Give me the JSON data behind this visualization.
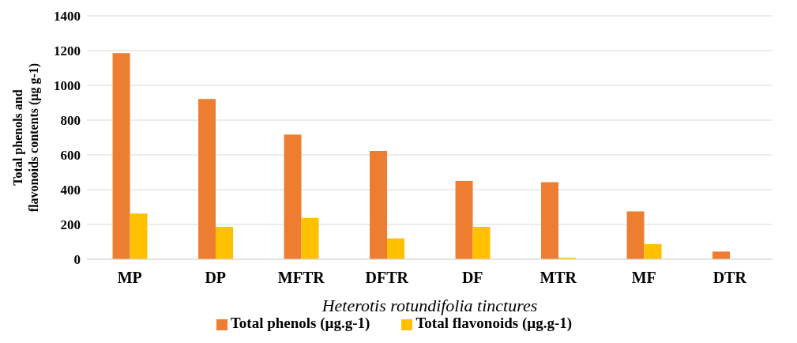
{
  "chart_data": {
    "type": "bar",
    "xlabel": "Heterotis rotundifolia tinctures",
    "ylabel": "Total phenols and flavonoids contents (µg g-1)",
    "categories": [
      "MP",
      "DP",
      "MFTR",
      "DFTR",
      "DF",
      "MTR",
      "MF",
      "DTR"
    ],
    "series": [
      {
        "name": "Total phenols (µg.g-1)",
        "color": "#ed7d31",
        "values": [
          1185,
          922,
          717,
          623,
          450,
          443,
          275,
          44
        ]
      },
      {
        "name": "Total flavonoids (µg.g-1)",
        "color": "#ffc000",
        "values": [
          262,
          186,
          238,
          120,
          186,
          8,
          87,
          0
        ]
      }
    ],
    "ylim": [
      0,
      1400
    ],
    "yticks": [
      0,
      200,
      400,
      600,
      800,
      1000,
      1200,
      1400
    ],
    "grid": "y",
    "legend": "bottom"
  }
}
